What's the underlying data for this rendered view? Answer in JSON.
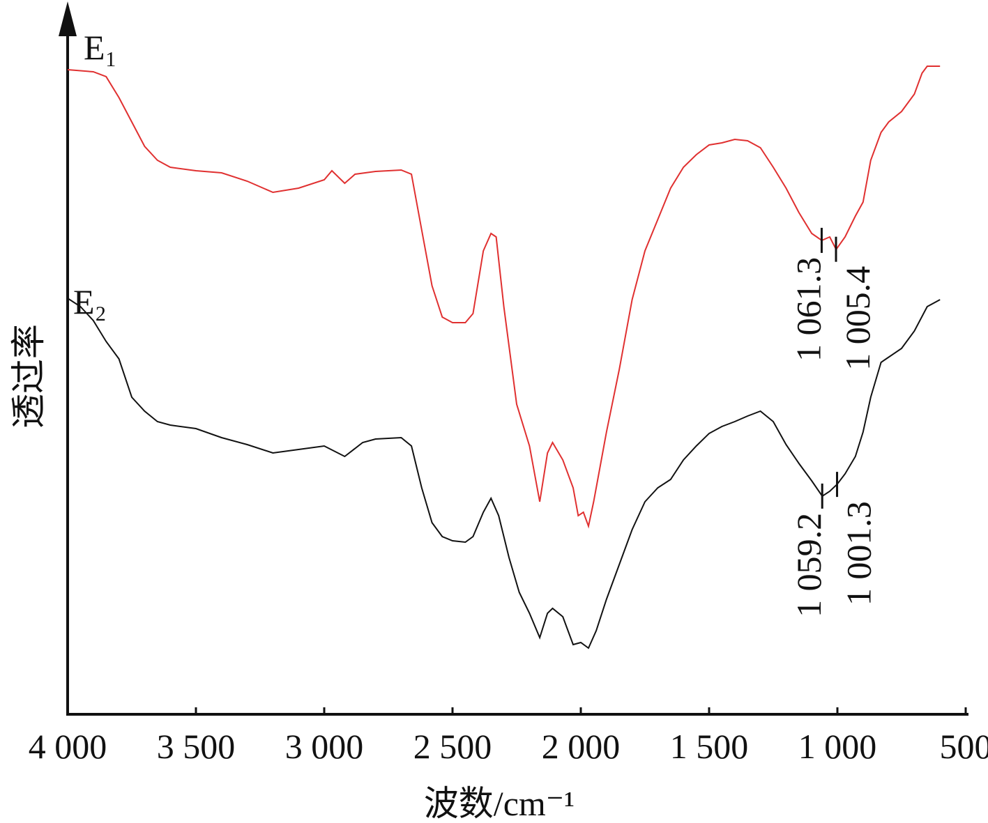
{
  "chart_data": {
    "type": "line",
    "x_label": "波数/cm⁻¹",
    "y_label": "透过率",
    "xlim": [
      4000,
      500
    ],
    "ylim": [
      0,
      100
    ],
    "xticks": [
      {
        "value": 4000,
        "label": "4 000"
      },
      {
        "value": 3500,
        "label": "3 500"
      },
      {
        "value": 3000,
        "label": "3 000"
      },
      {
        "value": 2500,
        "label": "2 500"
      },
      {
        "value": 2000,
        "label": "2 000"
      },
      {
        "value": 1500,
        "label": "1 500"
      },
      {
        "value": 1000,
        "label": "1 000"
      },
      500
    ],
    "series": [
      {
        "name": "E₁",
        "color": "#e03030",
        "x": [
          4000,
          3900,
          3850,
          3800,
          3750,
          3700,
          3650,
          3600,
          3500,
          3400,
          3300,
          3200,
          3100,
          3000,
          2970,
          2920,
          2880,
          2800,
          2700,
          2660,
          2620,
          2580,
          2540,
          2500,
          2450,
          2420,
          2380,
          2350,
          2330,
          2300,
          2250,
          2200,
          2160,
          2130,
          2110,
          2070,
          2030,
          2010,
          1990,
          1970,
          1950,
          1900,
          1850,
          1800,
          1750,
          1700,
          1650,
          1600,
          1550,
          1500,
          1450,
          1400,
          1350,
          1300,
          1250,
          1200,
          1150,
          1100,
          1061,
          1030,
          1005,
          970,
          930,
          900,
          870,
          830,
          800,
          750,
          700,
          670,
          650,
          600
        ],
        "values": [
          92.5,
          92.2,
          91.5,
          88.5,
          85,
          81.5,
          79.5,
          78.5,
          78,
          77.7,
          76.5,
          74.9,
          75.5,
          76.7,
          78,
          76.2,
          77.5,
          77.9,
          78.1,
          77.5,
          69.5,
          61.5,
          57,
          56.2,
          56.2,
          57.5,
          66.5,
          69,
          68.5,
          58.5,
          44.5,
          38.5,
          30.5,
          37.5,
          39,
          36.5,
          32.5,
          28.5,
          29,
          27,
          30.5,
          40.5,
          49.5,
          59.5,
          66.5,
          71,
          75.5,
          78.5,
          80.3,
          81.7,
          82,
          82.5,
          82.3,
          81.3,
          78.5,
          75.5,
          72,
          69,
          68,
          68.5,
          66.7,
          68.5,
          71.5,
          73.5,
          79.5,
          83.5,
          85,
          86.5,
          89,
          92,
          93,
          93
        ]
      },
      {
        "name": "E₂",
        "color": "#111111",
        "x": [
          4000,
          3950,
          3900,
          3850,
          3800,
          3750,
          3700,
          3650,
          3600,
          3500,
          3400,
          3300,
          3200,
          3100,
          3000,
          2920,
          2850,
          2800,
          2700,
          2660,
          2620,
          2580,
          2540,
          2500,
          2450,
          2420,
          2380,
          2350,
          2320,
          2280,
          2240,
          2200,
          2160,
          2130,
          2110,
          2070,
          2030,
          2000,
          1970,
          1940,
          1900,
          1850,
          1800,
          1750,
          1700,
          1650,
          1600,
          1550,
          1500,
          1450,
          1400,
          1350,
          1300,
          1250,
          1200,
          1150,
          1100,
          1059,
          1030,
          1001,
          970,
          930,
          900,
          870,
          830,
          810,
          750,
          700,
          650,
          600
        ],
        "values": [
          59.7,
          58.5,
          56.5,
          53.5,
          51,
          45.5,
          43.5,
          42,
          41.5,
          41,
          39.7,
          38.7,
          37.5,
          38,
          38.5,
          37,
          39,
          39.5,
          39.7,
          38.5,
          32.5,
          27.5,
          25.5,
          24.9,
          24.7,
          25.5,
          29,
          31,
          28.5,
          22.5,
          17.5,
          14.5,
          11,
          14.5,
          15.2,
          14,
          10,
          10.3,
          9.5,
          12,
          16.5,
          21.5,
          26.5,
          30.5,
          32.5,
          33.7,
          36.5,
          38.5,
          40.3,
          41.3,
          42,
          42.8,
          43.5,
          42,
          38.7,
          36,
          33.5,
          31.3,
          32,
          33,
          34.5,
          37,
          40.5,
          45.5,
          50.5,
          51,
          52.5,
          55,
          58.5,
          59.5
        ]
      }
    ],
    "annotations": [
      {
        "label": "1 061.3",
        "x": 1061.3,
        "series": 0
      },
      {
        "label": "1 005.4",
        "x": 1005.4,
        "series": 0
      },
      {
        "label": "1 059.2",
        "x": 1059.2,
        "series": 1
      },
      {
        "label": "1 001.3",
        "x": 1001.3,
        "series": 1
      }
    ]
  }
}
